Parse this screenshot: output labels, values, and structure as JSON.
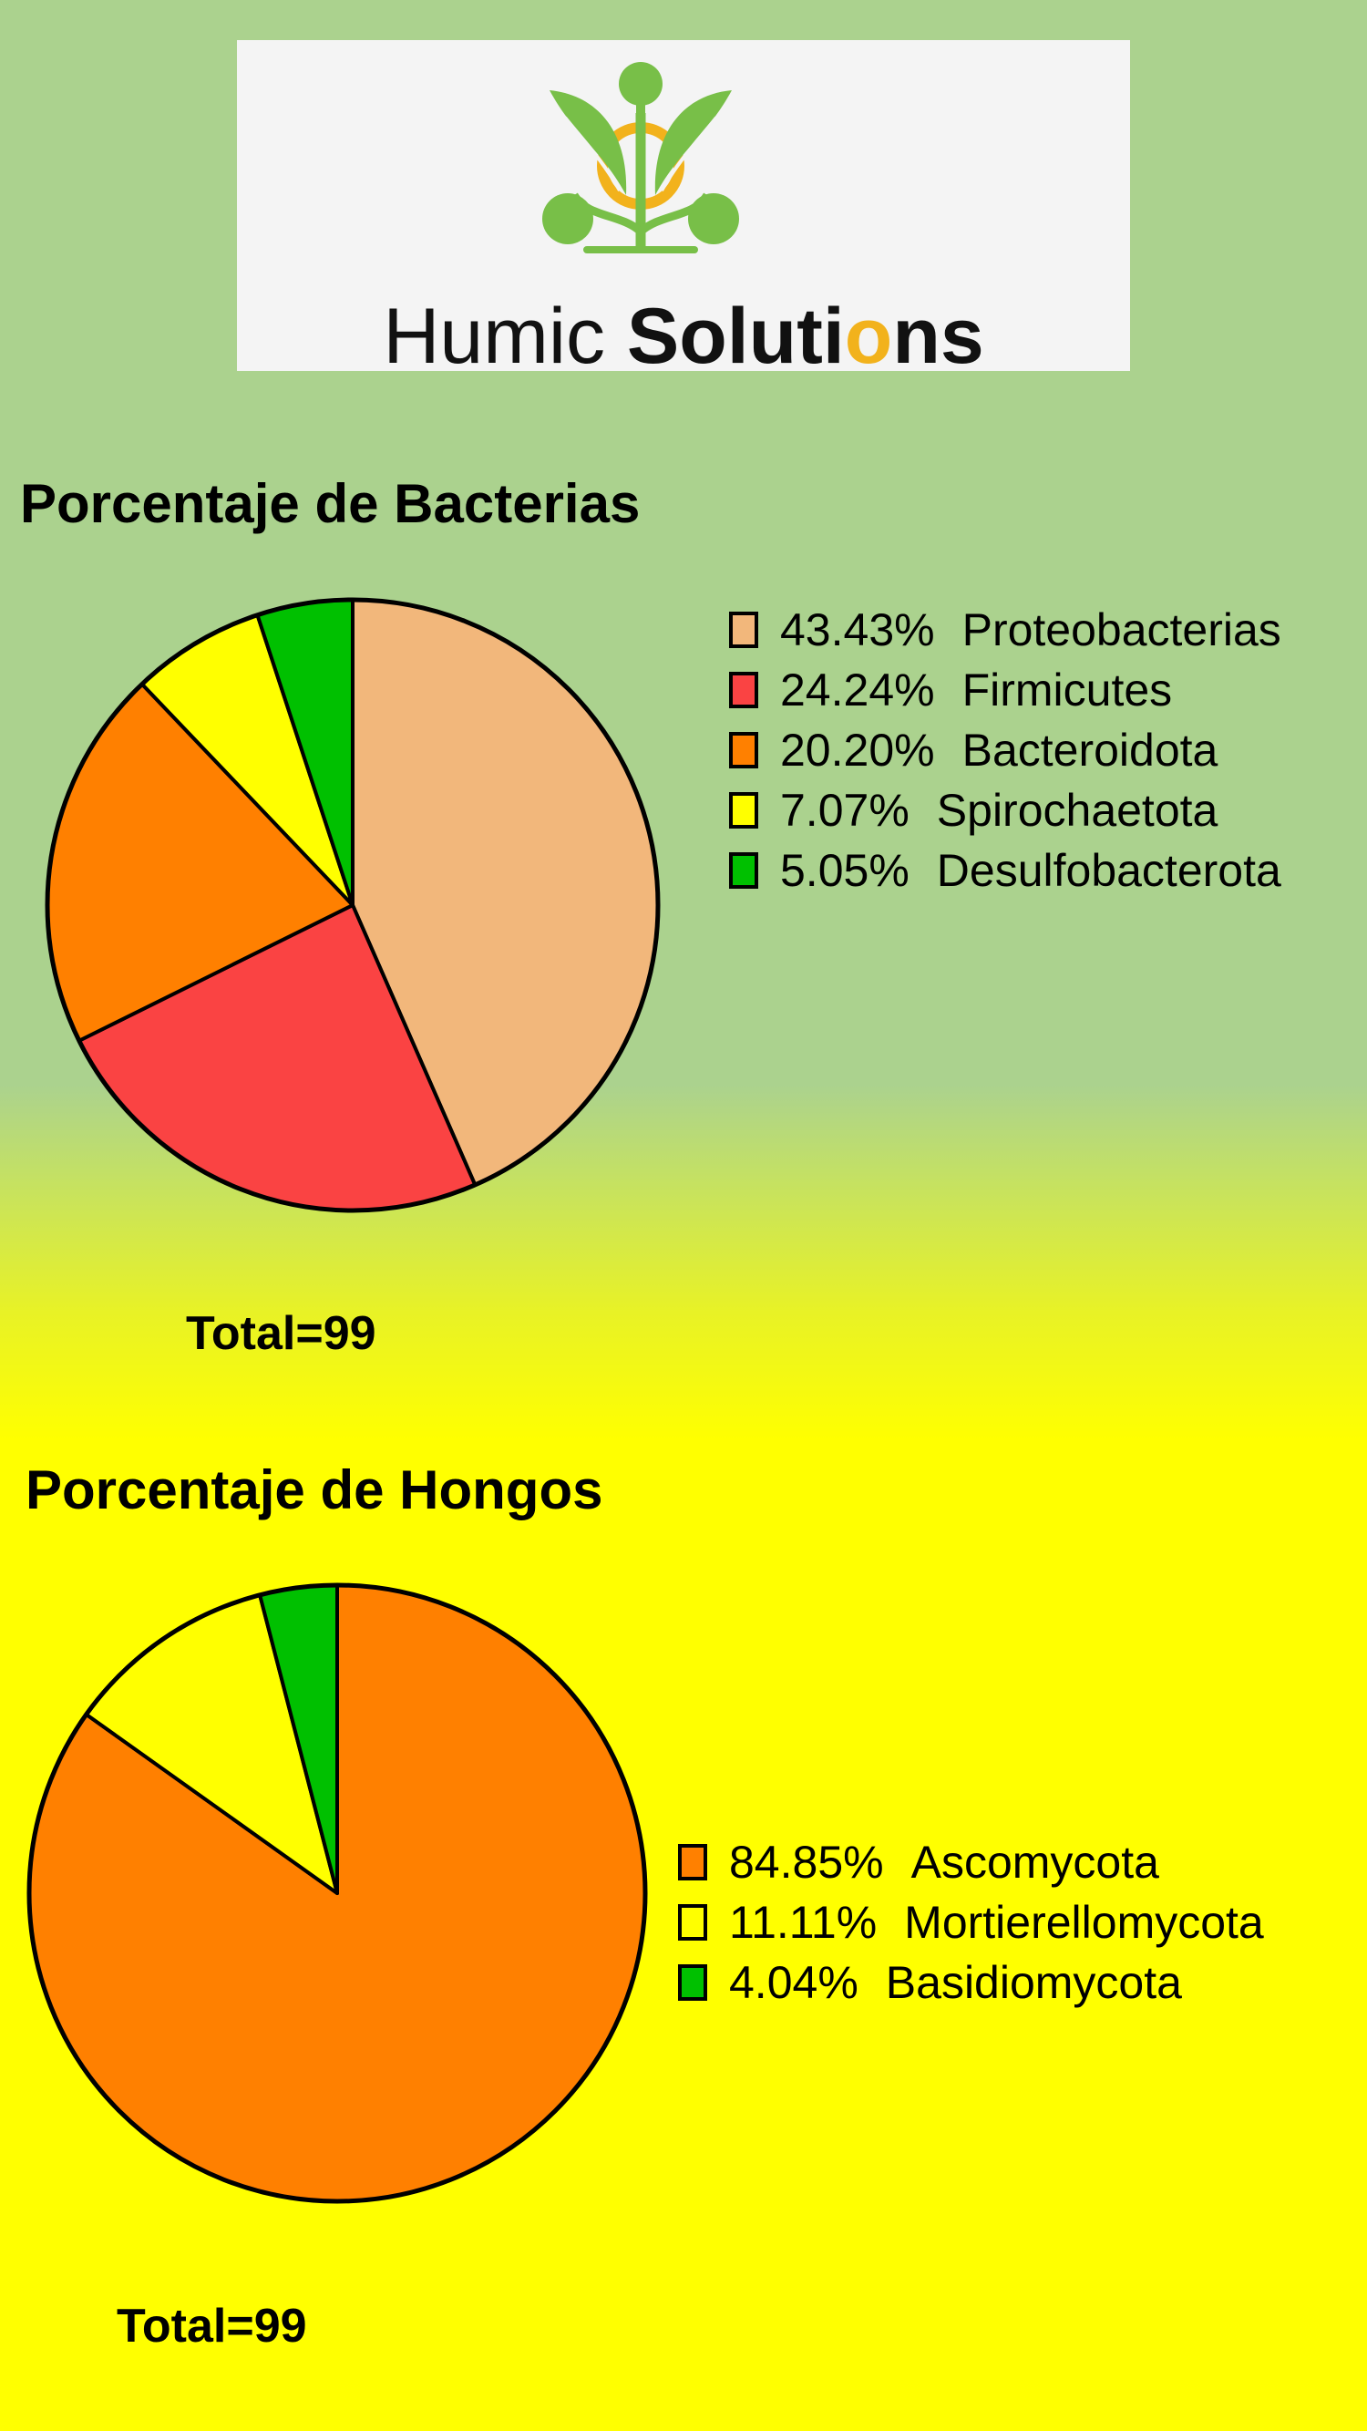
{
  "logo": {
    "word_light": "Humic ",
    "word_bold_1": "Solut",
    "word_bold_2": "i",
    "word_accent": "o",
    "word_bold_3": "ns",
    "leaf_color": "#78bf48",
    "accent_color": "#f2b21c"
  },
  "chart_data": [
    {
      "type": "pie",
      "title": "Porcentaje de Bacterias",
      "total_label": "Total=99",
      "slices": [
        {
          "label": "Proteobacterias",
          "pct_label": "43.43%",
          "value": 43.43,
          "color": "#f2b77b"
        },
        {
          "label": "Firmicutes",
          "pct_label": "24.24%",
          "value": 24.24,
          "color": "#fa4343"
        },
        {
          "label": "Bacteroidota",
          "pct_label": "20.20%",
          "value": 20.2,
          "color": "#ff8000"
        },
        {
          "label": "Spirochaetota",
          "pct_label": "7.07%",
          "value": 7.07,
          "color": "#ffff00"
        },
        {
          "label": "Desulfobacterota",
          "pct_label": "5.05%",
          "value": 5.05,
          "color": "#00c000"
        }
      ],
      "legend_position": "right"
    },
    {
      "type": "pie",
      "title": "Porcentaje de Hongos",
      "total_label": "Total=99",
      "slices": [
        {
          "label": "Ascomycota",
          "pct_label": "84.85%",
          "value": 84.85,
          "color": "#ff8000"
        },
        {
          "label": "Mortierellomycota",
          "pct_label": "11.11%",
          "value": 11.11,
          "color": "#ffff00"
        },
        {
          "label": "Basidiomycota",
          "pct_label": "4.04%",
          "value": 4.04,
          "color": "#00c000"
        }
      ],
      "legend_position": "right"
    }
  ]
}
